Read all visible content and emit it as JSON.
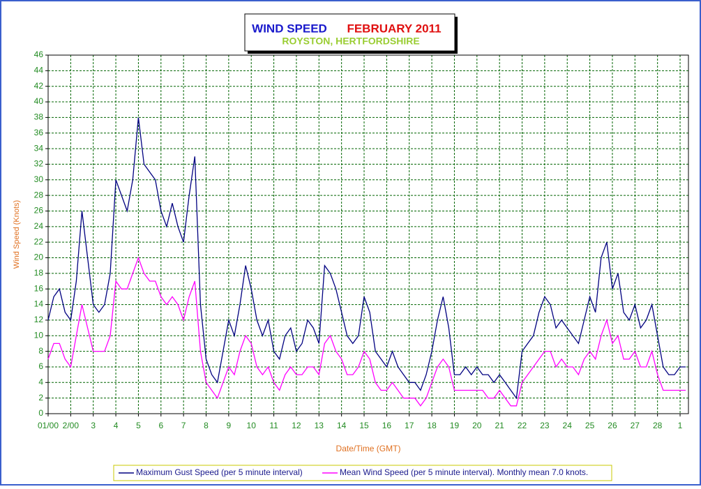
{
  "chart_data": {
    "type": "line",
    "title": "WIND SPEED",
    "title_month": "FEBRUARY 2011",
    "subtitle": "ROYSTON, HERTFORDSHIRE",
    "x_label": "Date/Time (GMT)",
    "y_label": "Wind Speed (Knots)",
    "xlim": [
      0,
      28.37
    ],
    "ylim": [
      0,
      46
    ],
    "grid": true,
    "xticks": [
      {
        "value": 0,
        "label": "01/00"
      },
      {
        "value": 1,
        "label": "2/00"
      },
      {
        "value": 2,
        "label": "3"
      },
      {
        "value": 3,
        "label": "4"
      },
      {
        "value": 4,
        "label": "5"
      },
      {
        "value": 5,
        "label": "6"
      },
      {
        "value": 6,
        "label": "7"
      },
      {
        "value": 7,
        "label": "8"
      },
      {
        "value": 8,
        "label": "9"
      },
      {
        "value": 9,
        "label": "10"
      },
      {
        "value": 10,
        "label": "11"
      },
      {
        "value": 11,
        "label": "12"
      },
      {
        "value": 12,
        "label": "13"
      },
      {
        "value": 13,
        "label": "14"
      },
      {
        "value": 14,
        "label": "15"
      },
      {
        "value": 15,
        "label": "16"
      },
      {
        "value": 16,
        "label": "17"
      },
      {
        "value": 17,
        "label": "18"
      },
      {
        "value": 18,
        "label": "19"
      },
      {
        "value": 19,
        "label": "20"
      },
      {
        "value": 20,
        "label": "21"
      },
      {
        "value": 21,
        "label": "22"
      },
      {
        "value": 22,
        "label": "23"
      },
      {
        "value": 23,
        "label": "24"
      },
      {
        "value": 24,
        "label": "25"
      },
      {
        "value": 25,
        "label": "26"
      },
      {
        "value": 26,
        "label": "27"
      },
      {
        "value": 27,
        "label": "28"
      },
      {
        "value": 28,
        "label": "1"
      }
    ],
    "yticks": [
      0,
      2,
      4,
      6,
      8,
      10,
      12,
      14,
      16,
      18,
      20,
      22,
      24,
      26,
      28,
      30,
      32,
      34,
      36,
      38,
      40,
      42,
      44,
      46
    ],
    "x": [
      0,
      0.25,
      0.5,
      0.75,
      1,
      1.25,
      1.5,
      1.75,
      2,
      2.25,
      2.5,
      2.75,
      3,
      3.25,
      3.5,
      3.75,
      4,
      4.25,
      4.5,
      4.75,
      5,
      5.25,
      5.5,
      5.75,
      6,
      6.25,
      6.5,
      6.75,
      7,
      7.25,
      7.5,
      7.75,
      8,
      8.25,
      8.5,
      8.75,
      9,
      9.25,
      9.5,
      9.75,
      10,
      10.25,
      10.5,
      10.75,
      11,
      11.25,
      11.5,
      11.75,
      12,
      12.25,
      12.5,
      12.75,
      13,
      13.25,
      13.5,
      13.75,
      14,
      14.25,
      14.5,
      14.75,
      15,
      15.25,
      15.5,
      15.75,
      16,
      16.25,
      16.5,
      16.75,
      17,
      17.25,
      17.5,
      17.75,
      18,
      18.25,
      18.5,
      18.75,
      19,
      19.25,
      19.5,
      19.75,
      20,
      20.25,
      20.5,
      20.75,
      21,
      21.25,
      21.5,
      21.75,
      22,
      22.25,
      22.5,
      22.75,
      23,
      23.25,
      23.5,
      23.75,
      24,
      24.25,
      24.5,
      24.75,
      25,
      25.25,
      25.5,
      25.75,
      26,
      26.25,
      26.5,
      26.75,
      27,
      27.25,
      27.5,
      27.75,
      28,
      28.25
    ],
    "series": [
      {
        "name": "Maximum Gust Speed (per 5 minute interval)",
        "color": "#000080",
        "values": [
          12,
          15,
          16,
          13,
          12,
          17,
          26,
          20,
          14,
          13,
          14,
          18,
          30,
          28,
          26,
          30,
          38,
          32,
          31,
          30,
          26,
          24,
          27,
          24,
          22,
          28,
          33,
          14,
          7,
          5,
          4,
          8,
          12,
          10,
          14,
          19,
          16,
          12,
          10,
          12,
          8,
          7,
          10,
          11,
          8,
          9,
          12,
          11,
          9,
          19,
          18,
          16,
          13,
          10,
          9,
          10,
          15,
          13,
          8,
          7,
          6,
          8,
          6,
          5,
          4,
          4,
          3,
          5,
          8,
          12,
          15,
          11,
          5,
          5,
          6,
          5,
          6,
          5,
          5,
          4,
          5,
          4,
          3,
          2,
          8,
          9,
          10,
          13,
          15,
          14,
          11,
          12,
          11,
          10,
          9,
          12,
          15,
          13,
          20,
          22,
          16,
          18,
          13,
          12,
          14,
          11,
          12,
          14,
          10,
          6,
          5,
          5,
          6,
          6
        ]
      },
      {
        "name": "Mean Wind Speed (per 5 minute interval). Monthly mean 7.0 knots.",
        "color": "#ff00ff",
        "values": [
          7,
          9,
          9,
          7,
          6,
          10,
          14,
          11,
          8,
          8,
          8,
          10,
          17,
          16,
          16,
          18,
          20,
          18,
          17,
          17,
          15,
          14,
          15,
          14,
          12,
          15,
          17,
          8,
          4,
          3,
          2,
          4,
          6,
          5,
          8,
          10,
          9,
          6,
          5,
          6,
          4,
          3,
          5,
          6,
          5,
          5,
          6,
          6,
          5,
          9,
          10,
          8,
          7,
          5,
          5,
          6,
          8,
          7,
          4,
          3,
          3,
          4,
          3,
          2,
          2,
          2,
          1,
          2,
          4,
          6,
          7,
          6,
          3,
          3,
          3,
          3,
          3,
          3,
          2,
          2,
          3,
          2,
          1,
          1,
          4,
          5,
          6,
          7,
          8,
          8,
          6,
          7,
          6,
          6,
          5,
          7,
          8,
          7,
          10,
          12,
          9,
          10,
          7,
          7,
          8,
          6,
          6,
          8,
          5,
          3,
          3,
          3,
          3,
          3
        ]
      }
    ]
  }
}
